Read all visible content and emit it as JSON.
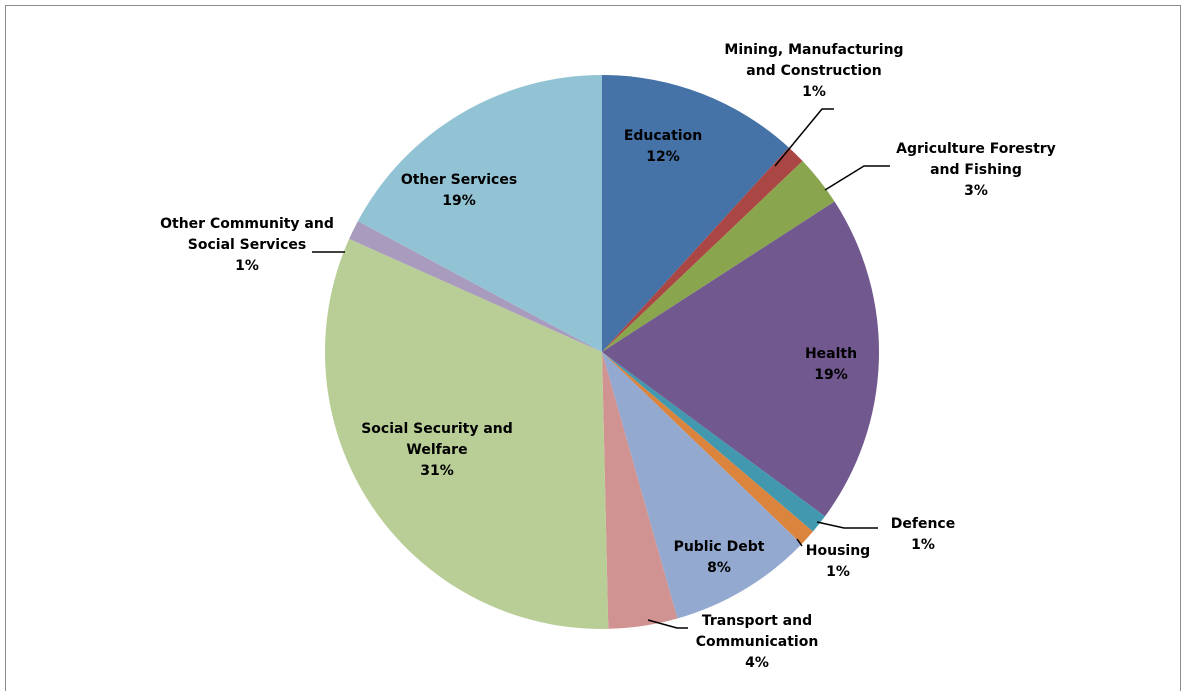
{
  "chart_data": {
    "type": "pie",
    "title": "",
    "slices": [
      {
        "label_lines": [
          "Education"
        ],
        "percent_label": "12%",
        "value": 12,
        "color": "#4572a7"
      },
      {
        "label_lines": [
          "Mining, Manufacturing",
          "and Construction"
        ],
        "percent_label": "1%",
        "value": 1,
        "color": "#aa4643"
      },
      {
        "label_lines": [
          "Agriculture Forestry",
          "and Fishing"
        ],
        "percent_label": "3%",
        "value": 3,
        "color": "#89a54e"
      },
      {
        "label_lines": [
          "Health"
        ],
        "percent_label": "19%",
        "value": 19,
        "color": "#71588f"
      },
      {
        "label_lines": [
          "Defence"
        ],
        "percent_label": "1%",
        "value": 1,
        "color": "#4198af"
      },
      {
        "label_lines": [
          "Housing"
        ],
        "percent_label": "1%",
        "value": 1,
        "color": "#db843d"
      },
      {
        "label_lines": [
          "Public Debt"
        ],
        "percent_label": "8%",
        "value": 8,
        "color": "#93a9cf"
      },
      {
        "label_lines": [
          "Transport and",
          "Communication"
        ],
        "percent_label": "4%",
        "value": 4,
        "color": "#d19392"
      },
      {
        "label_lines": [
          "Social Security and",
          "Welfare"
        ],
        "percent_label": "31%",
        "value": 31,
        "color": "#b9cd96"
      },
      {
        "label_lines": [
          "Other Community and",
          "Social Services"
        ],
        "percent_label": "1%",
        "value": 1,
        "color": "#a99bbd"
      },
      {
        "label_lines": [
          "Other Services"
        ],
        "percent_label": "19%",
        "value": 19,
        "color": "#92c3d4"
      }
    ]
  }
}
